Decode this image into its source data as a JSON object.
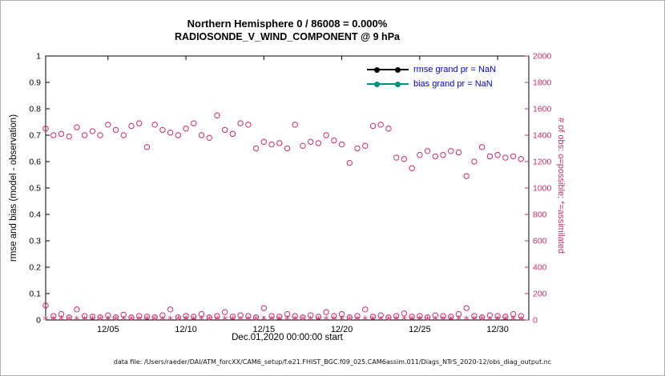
{
  "titles": {
    "line1": "Northern Hemisphere 0 / 86008 = 0.000%",
    "line2": "RADIOSONDE_V_WIND_COMPONENT @ 9 hPa"
  },
  "caption": "data file: /Users/raeder/DAI/ATM_forcXX/CAM6_setup/f.e21.FHIST_BGC.f09_025.CAM6assim.011/Diags_NTrS_2020-12/obs_diag_output.nc",
  "chart_data": {
    "type": "scatter",
    "title": "Northern Hemisphere 0 / 86008 = 0.000%",
    "subtitle": "RADIOSONDE_V_WIND_COMPONENT @ 9 hPa",
    "xlabel": "Dec.01,2020 00:00:00 start",
    "ylabel_left": "rmse and bias (model - observation)",
    "ylabel_right": "# of obs: o=possible; *=assimilated",
    "xlim_days": [
      1,
      32
    ],
    "ylim_left": [
      0,
      1
    ],
    "ylim_right": [
      0,
      2000
    ],
    "yticks_left": [
      0,
      0.1,
      0.2,
      0.3,
      0.4,
      0.5,
      0.6,
      0.7,
      0.8,
      0.9,
      1
    ],
    "yticks_right": [
      0,
      200,
      400,
      600,
      800,
      1000,
      1200,
      1400,
      1600,
      1800,
      2000
    ],
    "xticks": [
      {
        "day": 5,
        "label": "12/05"
      },
      {
        "day": 10,
        "label": "12/10"
      },
      {
        "day": 15,
        "label": "12/15"
      },
      {
        "day": 20,
        "label": "12/20"
      },
      {
        "day": 25,
        "label": "12/25"
      },
      {
        "day": 30,
        "label": "12/30"
      }
    ],
    "legend": [
      {
        "name": "rmse",
        "label": "rmse grand pr = NaN"
      },
      {
        "name": "bias",
        "label": "bias grand pr = NaN"
      }
    ],
    "legend_position": "top-right",
    "grid": false,
    "colors": {
      "obs": "#cf2a68",
      "rmse": "#000000",
      "bias": "#00917c",
      "legend_text": "#0000dd"
    },
    "series": [
      {
        "name": "possible_obs_main",
        "marker": "o",
        "axis": "right",
        "x": [
          1,
          1.5,
          2,
          2.5,
          3,
          3.5,
          4,
          4.5,
          5,
          5.5,
          6,
          6.5,
          7,
          7.5,
          8,
          8.5,
          9,
          9.5,
          10,
          10.5,
          11,
          11.5,
          12,
          12.5,
          13,
          13.5,
          14,
          14.5,
          15,
          15.5,
          16,
          16.5,
          17,
          17.5,
          18,
          18.5,
          19,
          19.5,
          20,
          20.5,
          21,
          21.5,
          22,
          22.5,
          23,
          23.5,
          24,
          24.5,
          25,
          25.5,
          26,
          26.5,
          27,
          27.5,
          28,
          28.5,
          29,
          29.5,
          30,
          30.5,
          31,
          31.5
        ],
        "y": [
          1450,
          1400,
          1410,
          1390,
          1460,
          1400,
          1430,
          1400,
          1480,
          1440,
          1400,
          1470,
          1490,
          1310,
          1480,
          1440,
          1420,
          1400,
          1450,
          1490,
          1400,
          1380,
          1550,
          1440,
          1410,
          1490,
          1480,
          1300,
          1350,
          1330,
          1340,
          1300,
          1480,
          1320,
          1350,
          1340,
          1400,
          1360,
          1330,
          1190,
          1300,
          1320,
          1470,
          1480,
          1450,
          1230,
          1220,
          1150,
          1250,
          1280,
          1240,
          1250,
          1280,
          1270,
          1090,
          1200,
          1310,
          1240,
          1250,
          1230,
          1240,
          1220
        ]
      },
      {
        "name": "possible_obs_offtime",
        "marker": "o",
        "axis": "right",
        "x": [
          1,
          1.5,
          2,
          2.5,
          3,
          3.5,
          4,
          4.5,
          5,
          5.5,
          6,
          6.5,
          7,
          7.5,
          8,
          8.5,
          9,
          9.5,
          10,
          10.5,
          11,
          11.5,
          12,
          12.5,
          13,
          13.5,
          14,
          14.5,
          15,
          15.5,
          16,
          16.5,
          17,
          17.5,
          18,
          18.5,
          19,
          19.5,
          20,
          20.5,
          21,
          21.5,
          22,
          22.5,
          23,
          23.5,
          24,
          24.5,
          25,
          25.5,
          26,
          26.5,
          27,
          27.5,
          28,
          28.5,
          29,
          29.5,
          30,
          30.5,
          31,
          31.5
        ],
        "y": [
          110,
          30,
          45,
          20,
          80,
          30,
          25,
          20,
          35,
          20,
          40,
          20,
          30,
          25,
          20,
          35,
          80,
          20,
          30,
          25,
          45,
          20,
          30,
          60,
          25,
          35,
          30,
          20,
          90,
          30,
          25,
          45,
          30,
          20,
          35,
          25,
          60,
          30,
          45,
          20,
          30,
          80,
          25,
          35,
          20,
          30,
          50,
          25,
          30,
          20,
          35,
          30,
          25,
          45,
          90,
          30,
          20,
          35,
          30,
          25,
          45,
          30
        ]
      },
      {
        "name": "assimilated_obs",
        "marker": "*",
        "axis": "right",
        "x": [
          1,
          1.5,
          2,
          2.5,
          3,
          3.5,
          4,
          4.5,
          5,
          5.5,
          6,
          6.5,
          7,
          7.5,
          8,
          8.5,
          9,
          9.5,
          10,
          10.5,
          11,
          11.5,
          12,
          12.5,
          13,
          13.5,
          14,
          14.5,
          15,
          15.5,
          16,
          16.5,
          17,
          17.5,
          18,
          18.5,
          19,
          19.5,
          20,
          20.5,
          21,
          21.5,
          22,
          22.5,
          23,
          23.5,
          24,
          24.5,
          25,
          25.5,
          26,
          26.5,
          27,
          27.5,
          28,
          28.5,
          29,
          29.5,
          30,
          30.5,
          31,
          31.5
        ],
        "y": [
          0,
          0,
          0,
          0,
          0,
          0,
          0,
          0,
          0,
          0,
          0,
          0,
          0,
          0,
          0,
          0,
          0,
          0,
          0,
          0,
          0,
          0,
          0,
          0,
          0,
          0,
          0,
          0,
          0,
          0,
          0,
          0,
          0,
          0,
          0,
          0,
          0,
          0,
          0,
          0,
          0,
          0,
          0,
          0,
          0,
          0,
          0,
          0,
          0,
          0,
          0,
          0,
          0,
          0,
          0,
          0,
          0,
          0,
          0,
          0,
          0,
          0
        ]
      }
    ]
  }
}
